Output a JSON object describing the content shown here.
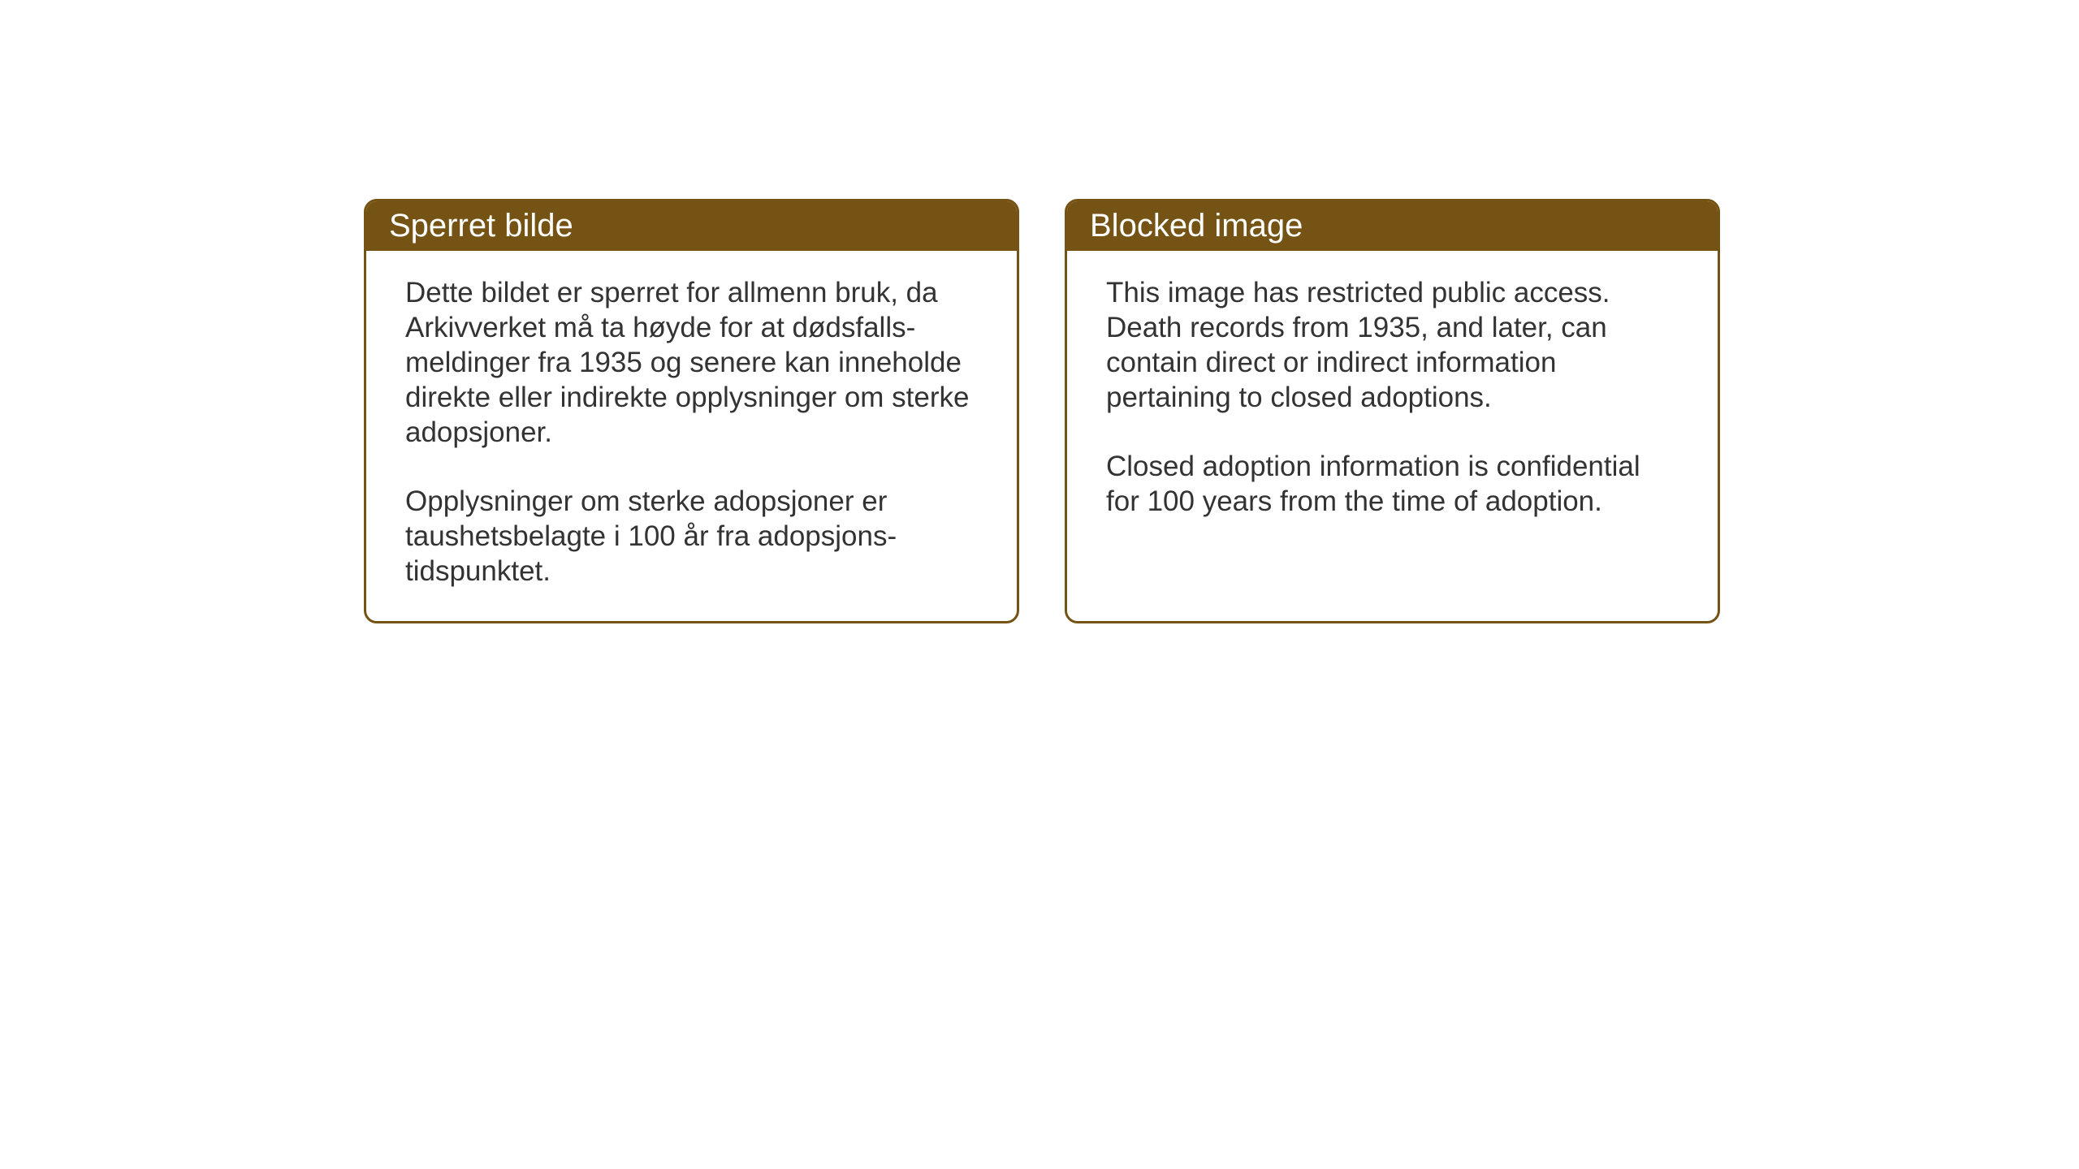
{
  "page": {
    "background_color": "#ffffff"
  },
  "notices": {
    "norwegian": {
      "title": "Sperret bilde",
      "paragraph1": "Dette bildet er sperret for allmenn bruk, da Arkivverket må ta høyde for at dødsfalls-meldinger fra 1935 og senere kan inneholde direkte eller indirekte opplysninger om sterke adopsjoner.",
      "paragraph2": "Opplysninger om sterke adopsjoner er taushetsbelagte i 100 år fra adopsjons-tidspunktet."
    },
    "english": {
      "title": "Blocked image",
      "paragraph1": "This image has restricted public access. Death records from 1935, and later, can contain direct or indirect information pertaining to closed adoptions.",
      "paragraph2": "Closed adoption information is confidential for 100 years from the time of adoption."
    }
  },
  "styling": {
    "header_background": "#745314",
    "header_text_color": "#ffffff",
    "border_color": "#745314",
    "body_text_color": "#333333",
    "title_fontsize": 40,
    "body_fontsize": 35,
    "border_radius": 16,
    "border_width": 3
  }
}
